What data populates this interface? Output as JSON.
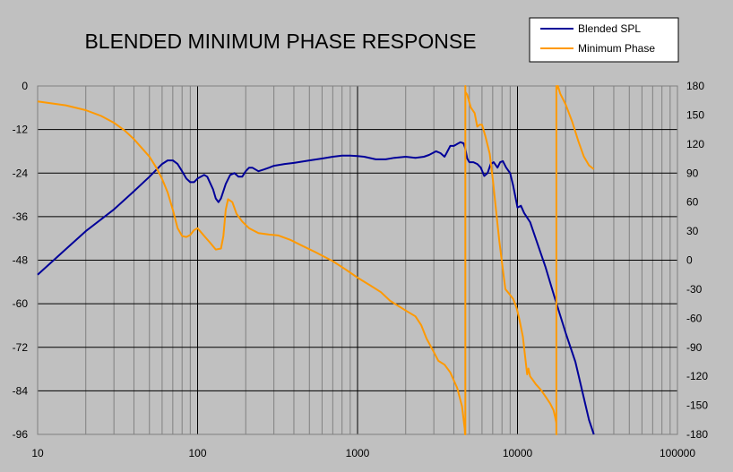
{
  "chart_data": {
    "type": "line",
    "title": "BLENDED MINIMUM PHASE RESPONSE",
    "x_scale": "log",
    "xlim": [
      10,
      100000
    ],
    "x_ticks": [
      10,
      100,
      1000,
      10000,
      100000
    ],
    "x_tick_labels": [
      "10",
      "100",
      "1000",
      "10000",
      "100000"
    ],
    "ylim_left": [
      -96,
      0
    ],
    "y_ticks_left": [
      0,
      -12,
      -24,
      -36,
      -48,
      -60,
      -72,
      -84,
      -96
    ],
    "y_tick_labels_left": [
      "0",
      "-12",
      "-24",
      "-36",
      "-48",
      "-60",
      "-72",
      "-84",
      "-96"
    ],
    "ylim_right": [
      -180,
      180
    ],
    "y_ticks_right": [
      180,
      150,
      120,
      90,
      60,
      30,
      0,
      -30,
      -60,
      -90,
      -120,
      -150,
      -180
    ],
    "y_tick_labels_right": [
      "180",
      "150",
      "120",
      "90",
      "60",
      "30",
      "0",
      "-30",
      "-60",
      "-90",
      "-120",
      "-150",
      "-180"
    ],
    "grid": true,
    "legend_position": "top-right",
    "series": [
      {
        "name": "Blended SPL",
        "axis": "left",
        "color": "#000099",
        "points": [
          [
            10,
            -52
          ],
          [
            15,
            -45
          ],
          [
            20,
            -40
          ],
          [
            30,
            -34
          ],
          [
            40,
            -29
          ],
          [
            50,
            -25
          ],
          [
            60,
            -21.5
          ],
          [
            65,
            -20.5
          ],
          [
            70,
            -20.5
          ],
          [
            75,
            -21.5
          ],
          [
            80,
            -23.5
          ],
          [
            85,
            -25.5
          ],
          [
            90,
            -26.5
          ],
          [
            95,
            -26.5
          ],
          [
            100,
            -25.5
          ],
          [
            110,
            -24.5
          ],
          [
            115,
            -25
          ],
          [
            125,
            -28.5
          ],
          [
            130,
            -31
          ],
          [
            135,
            -32
          ],
          [
            140,
            -31
          ],
          [
            150,
            -27
          ],
          [
            160,
            -24.5
          ],
          [
            170,
            -24
          ],
          [
            180,
            -25
          ],
          [
            190,
            -25
          ],
          [
            200,
            -23.5
          ],
          [
            210,
            -22.5
          ],
          [
            220,
            -22.5
          ],
          [
            240,
            -23.5
          ],
          [
            260,
            -23
          ],
          [
            280,
            -22.5
          ],
          [
            300,
            -22
          ],
          [
            350,
            -21.5
          ],
          [
            400,
            -21.2
          ],
          [
            500,
            -20.5
          ],
          [
            600,
            -20
          ],
          [
            700,
            -19.5
          ],
          [
            800,
            -19.2
          ],
          [
            900,
            -19.2
          ],
          [
            1000,
            -19.3
          ],
          [
            1100,
            -19.5
          ],
          [
            1300,
            -20.2
          ],
          [
            1500,
            -20.2
          ],
          [
            1700,
            -19.8
          ],
          [
            2000,
            -19.5
          ],
          [
            2300,
            -19.8
          ],
          [
            2600,
            -19.5
          ],
          [
            2800,
            -19
          ],
          [
            3100,
            -18
          ],
          [
            3300,
            -18.5
          ],
          [
            3500,
            -19.5
          ],
          [
            3600,
            -18.5
          ],
          [
            3800,
            -16.5
          ],
          [
            4000,
            -16.5
          ],
          [
            4200,
            -16
          ],
          [
            4400,
            -15.5
          ],
          [
            4600,
            -15.8
          ],
          [
            4700,
            -17
          ],
          [
            4850,
            -20
          ],
          [
            5000,
            -21
          ],
          [
            5300,
            -21
          ],
          [
            5600,
            -21.5
          ],
          [
            5900,
            -22.5
          ],
          [
            6200,
            -24.8
          ],
          [
            6500,
            -24
          ],
          [
            6800,
            -21.5
          ],
          [
            7100,
            -21
          ],
          [
            7500,
            -22.5
          ],
          [
            7800,
            -21
          ],
          [
            8100,
            -20.7
          ],
          [
            8500,
            -22.5
          ],
          [
            9000,
            -24
          ],
          [
            9400,
            -27.5
          ],
          [
            9800,
            -31.5
          ],
          [
            10000,
            -33.5
          ],
          [
            10500,
            -33
          ],
          [
            11000,
            -35
          ],
          [
            12000,
            -37.5
          ],
          [
            13000,
            -42
          ],
          [
            15000,
            -50
          ],
          [
            17000,
            -58
          ],
          [
            20000,
            -68
          ],
          [
            23000,
            -76
          ],
          [
            26000,
            -86
          ],
          [
            28000,
            -92
          ],
          [
            30000,
            -96
          ]
        ]
      },
      {
        "name": "Minimum Phase",
        "axis": "right",
        "color": "#ff9900",
        "points": [
          [
            10,
            164
          ],
          [
            15,
            160
          ],
          [
            20,
            155
          ],
          [
            25,
            149
          ],
          [
            30,
            142
          ],
          [
            35,
            134
          ],
          [
            40,
            125
          ],
          [
            50,
            107
          ],
          [
            55,
            96
          ],
          [
            60,
            84
          ],
          [
            65,
            70
          ],
          [
            70,
            52
          ],
          [
            75,
            33
          ],
          [
            80,
            25
          ],
          [
            85,
            24
          ],
          [
            90,
            26
          ],
          [
            95,
            31
          ],
          [
            100,
            33
          ],
          [
            110,
            25
          ],
          [
            120,
            18
          ],
          [
            130,
            11
          ],
          [
            140,
            12
          ],
          [
            145,
            25
          ],
          [
            150,
            52
          ],
          [
            155,
            63
          ],
          [
            165,
            60
          ],
          [
            175,
            48
          ],
          [
            190,
            40
          ],
          [
            210,
            33
          ],
          [
            240,
            28
          ],
          [
            280,
            26.5
          ],
          [
            320,
            25.5
          ],
          [
            380,
            21
          ],
          [
            450,
            15
          ],
          [
            550,
            8
          ],
          [
            700,
            -1
          ],
          [
            850,
            -10
          ],
          [
            1000,
            -18
          ],
          [
            1200,
            -26
          ],
          [
            1400,
            -33
          ],
          [
            1600,
            -42
          ],
          [
            2000,
            -52
          ],
          [
            2300,
            -58
          ],
          [
            2500,
            -67
          ],
          [
            2700,
            -81
          ],
          [
            3000,
            -95
          ],
          [
            3200,
            -104
          ],
          [
            3500,
            -108
          ],
          [
            3800,
            -116
          ],
          [
            4200,
            -132
          ],
          [
            4500,
            -151
          ],
          [
            4680,
            -174
          ],
          [
            4700,
            -180
          ],
          [
            4720,
            174
          ],
          [
            4850,
            171
          ],
          [
            5100,
            158
          ],
          [
            5400,
            152
          ],
          [
            5600,
            138
          ],
          [
            5800,
            140
          ],
          [
            6000,
            140
          ],
          [
            6300,
            128
          ],
          [
            6700,
            110
          ],
          [
            7000,
            84
          ],
          [
            7400,
            46
          ],
          [
            7700,
            20
          ],
          [
            8100,
            -10
          ],
          [
            8400,
            -30
          ],
          [
            8800,
            -34
          ],
          [
            9400,
            -40
          ],
          [
            9900,
            -50
          ],
          [
            10300,
            -62
          ],
          [
            10800,
            -79
          ],
          [
            11200,
            -102
          ],
          [
            11500,
            -118
          ],
          [
            11700,
            -112
          ],
          [
            12000,
            -120
          ],
          [
            12500,
            -124
          ],
          [
            13000,
            -128
          ],
          [
            14000,
            -134
          ],
          [
            15000,
            -141
          ],
          [
            16000,
            -148
          ],
          [
            16800,
            -155
          ],
          [
            17200,
            -162
          ],
          [
            17480,
            -168
          ],
          [
            17500,
            176
          ],
          [
            17900,
            180
          ],
          [
            18500,
            172
          ],
          [
            20000,
            161
          ],
          [
            22000,
            143
          ],
          [
            24000,
            123
          ],
          [
            26000,
            107
          ],
          [
            28000,
            98
          ],
          [
            30000,
            94
          ]
        ]
      }
    ]
  }
}
